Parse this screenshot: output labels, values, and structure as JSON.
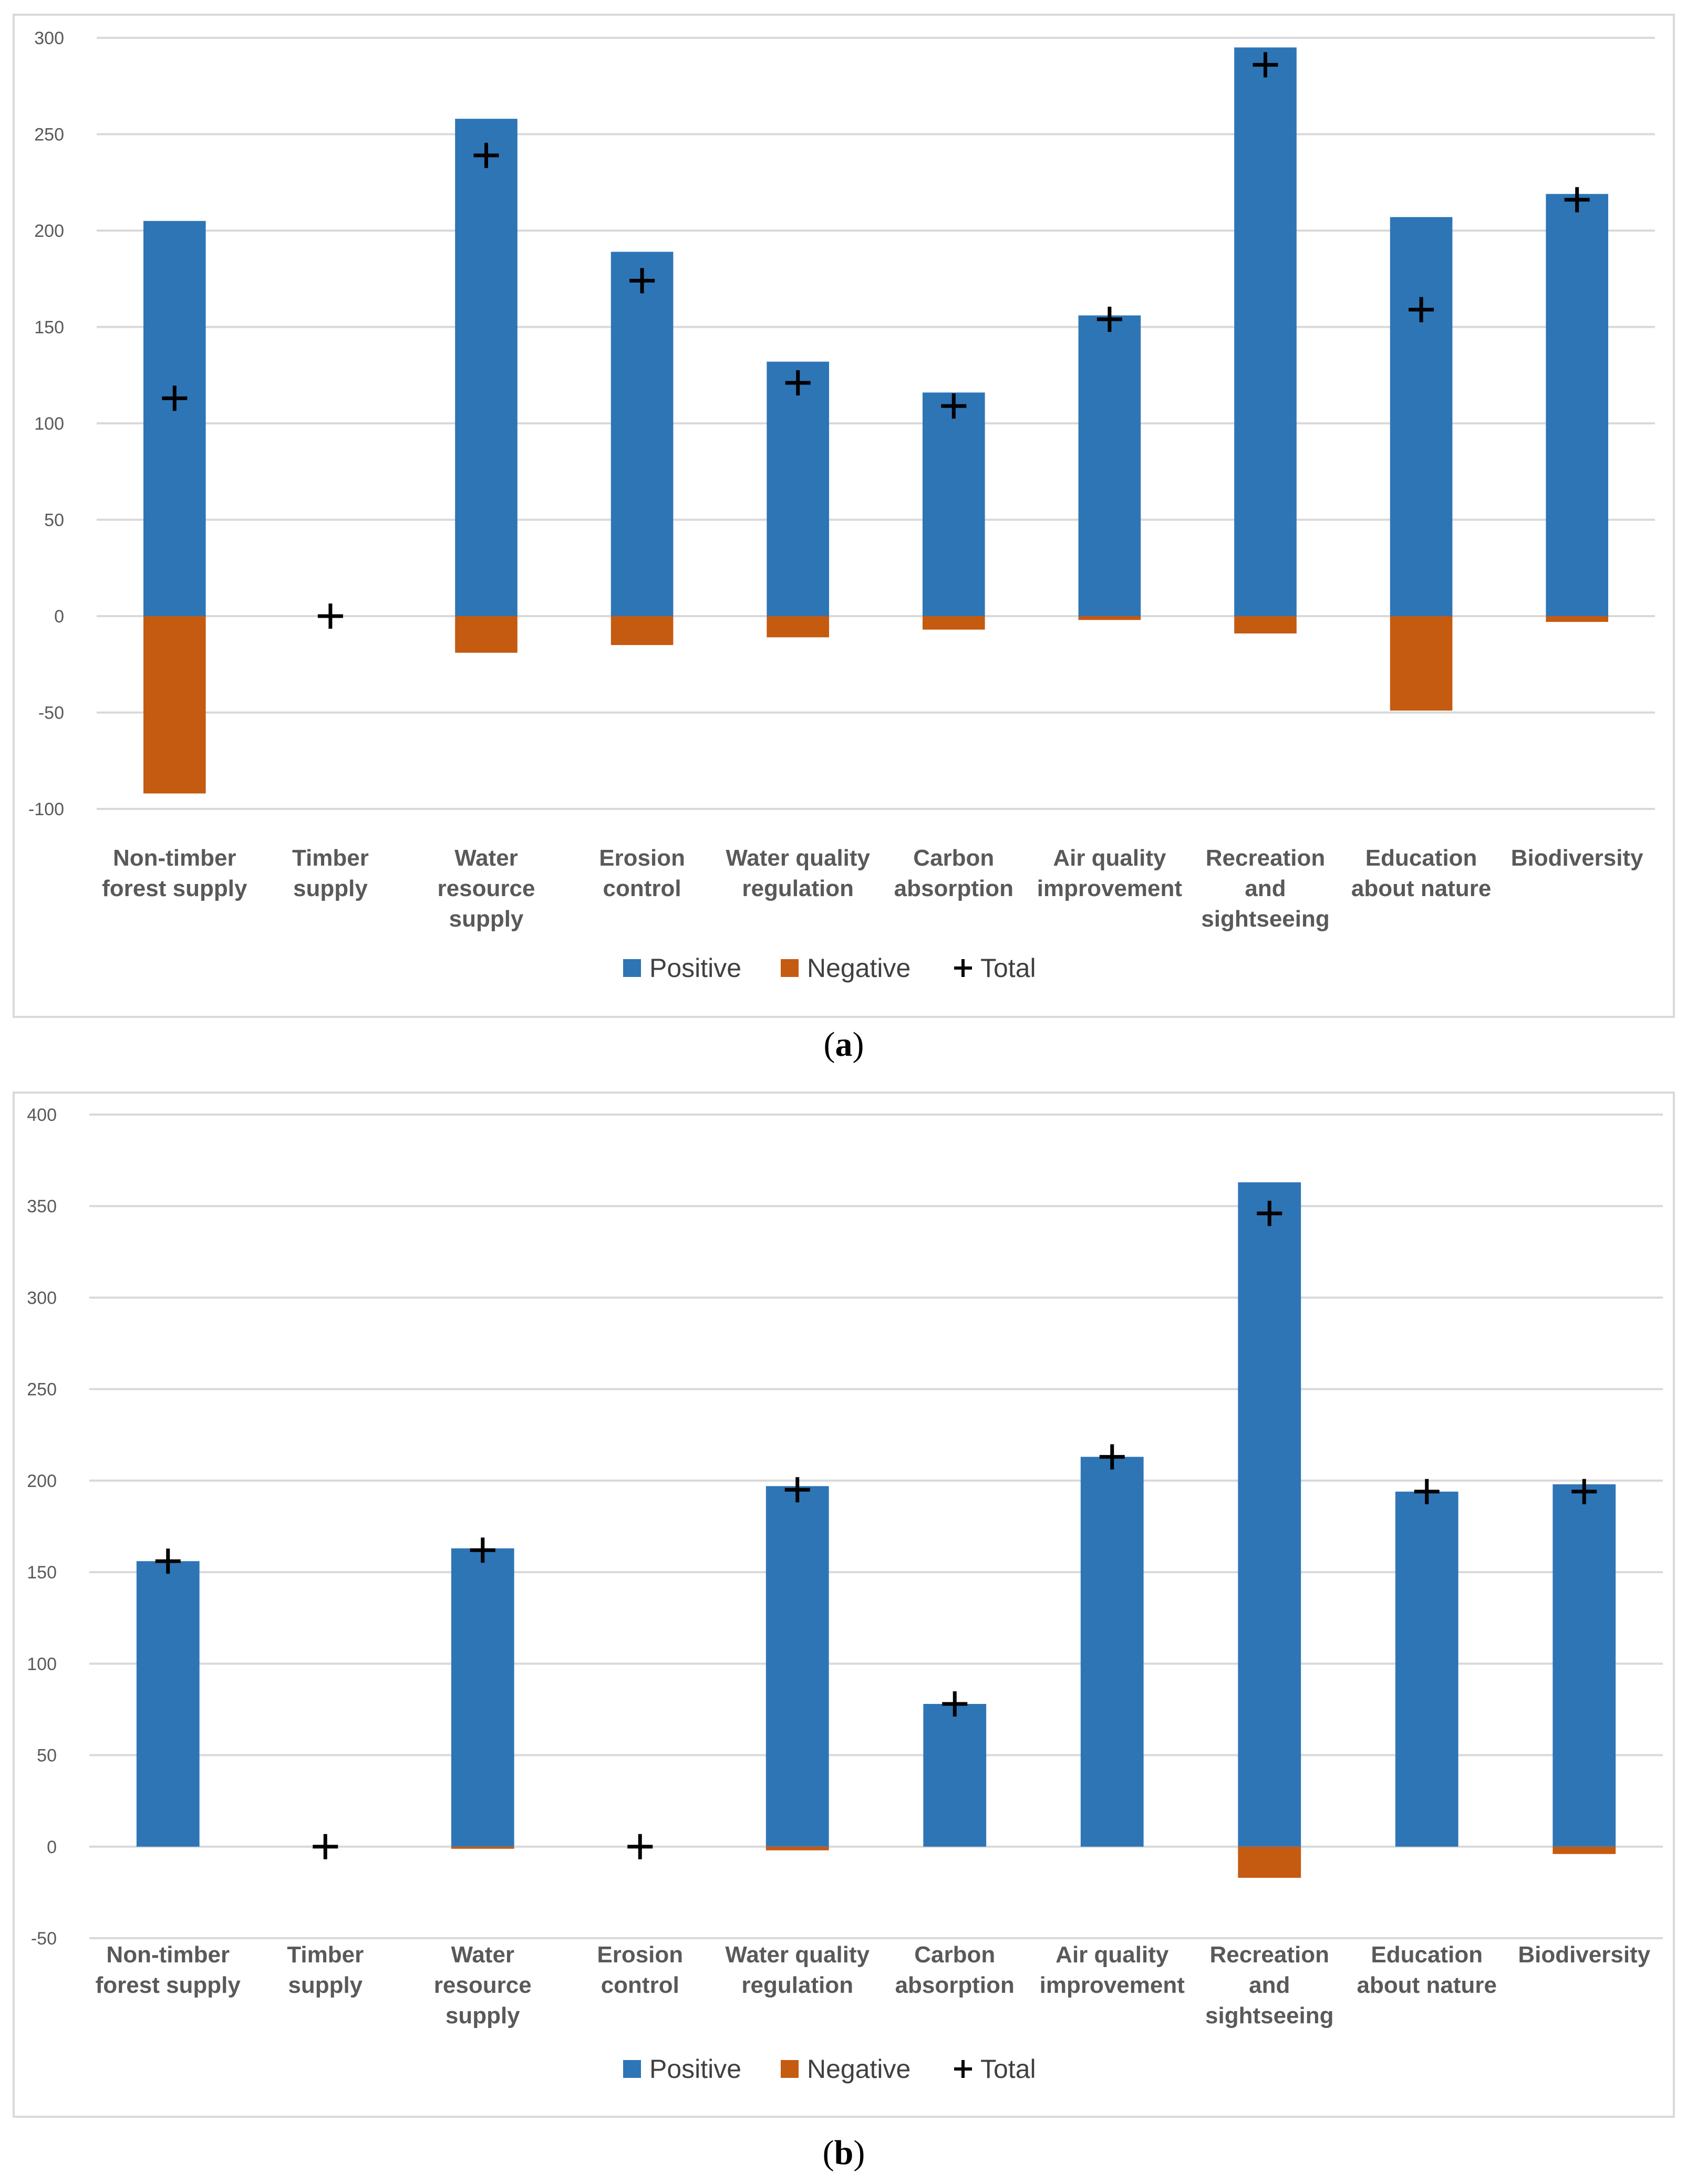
{
  "colors": {
    "positive": "#2E75B6",
    "negative": "#C55A11",
    "total": "#000000"
  },
  "legend": {
    "positive": "Positive",
    "negative": "Negative",
    "total": "Total"
  },
  "chart_data": [
    {
      "id": "a",
      "type": "bar",
      "panel_label_open": "(",
      "panel_label_letter": "a",
      "panel_label_close": ")",
      "categories": [
        [
          "Non-timber",
          "forest supply"
        ],
        [
          "Timber",
          "supply"
        ],
        [
          "Water",
          "resource",
          "supply"
        ],
        [
          "Erosion",
          "control"
        ],
        [
          "Water quality",
          "regulation"
        ],
        [
          "Carbon",
          "absorption"
        ],
        [
          "Air quality",
          "improvement"
        ],
        [
          "Recreation",
          "and",
          "sightseeing"
        ],
        [
          "Education",
          "about nature"
        ],
        [
          "Biodiversity"
        ]
      ],
      "series": [
        {
          "name": "Positive",
          "kind": "bar",
          "values": [
            205,
            0,
            258,
            189,
            132,
            116,
            156,
            295,
            207,
            219
          ]
        },
        {
          "name": "Negative",
          "kind": "bar",
          "values": [
            -92,
            0,
            -19,
            -15,
            -11,
            -7,
            -2,
            -9,
            -49,
            -3
          ]
        },
        {
          "name": "Total",
          "kind": "marker",
          "values": [
            113,
            0,
            239,
            174,
            121,
            109,
            154,
            286,
            159,
            216
          ]
        }
      ],
      "ylim": [
        -100,
        300
      ],
      "yticks": [
        -100,
        -50,
        0,
        50,
        100,
        150,
        200,
        250,
        300
      ],
      "legend_position": "bottom",
      "grid": true
    },
    {
      "id": "b",
      "type": "bar",
      "panel_label_open": "(",
      "panel_label_letter": "b",
      "panel_label_close": ")",
      "categories": [
        [
          "Non-timber",
          "forest supply"
        ],
        [
          "Timber",
          "supply"
        ],
        [
          "Water",
          "resource",
          "supply"
        ],
        [
          "Erosion",
          "control"
        ],
        [
          "Water quality",
          "regulation"
        ],
        [
          "Carbon",
          "absorption"
        ],
        [
          "Air quality",
          "improvement"
        ],
        [
          "Recreation",
          "and",
          "sightseeing"
        ],
        [
          "Education",
          "about nature"
        ],
        [
          "Biodiversity"
        ]
      ],
      "series": [
        {
          "name": "Positive",
          "kind": "bar",
          "values": [
            156,
            0,
            163,
            0,
            197,
            78,
            213,
            363,
            194,
            198
          ]
        },
        {
          "name": "Negative",
          "kind": "bar",
          "values": [
            0,
            0,
            -1,
            0,
            -2,
            0,
            0,
            -17,
            0,
            -4
          ]
        },
        {
          "name": "Total",
          "kind": "marker",
          "values": [
            156,
            0,
            162,
            0,
            195,
            78,
            213,
            346,
            194,
            194
          ]
        }
      ],
      "ylim": [
        -50,
        400
      ],
      "yticks": [
        -50,
        0,
        50,
        100,
        150,
        200,
        250,
        300,
        350,
        400
      ],
      "legend_position": "bottom",
      "grid": true
    }
  ]
}
